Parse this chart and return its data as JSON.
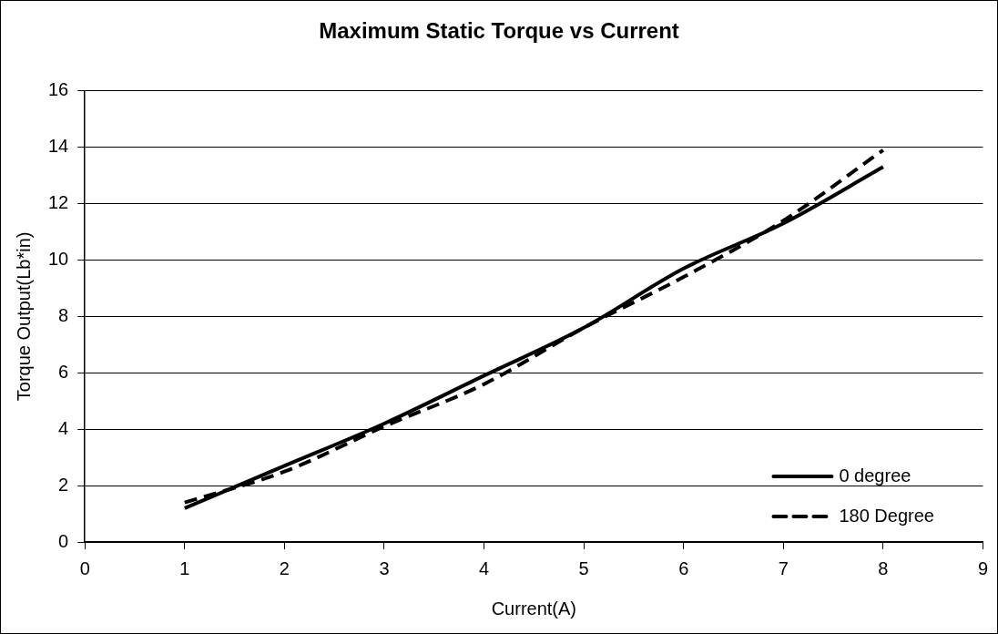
{
  "chart_data": {
    "type": "line",
    "title": "Maximum Static Torque vs Current",
    "xlabel": "Current(A)",
    "ylabel": "Torque Output(Lb*in)",
    "x": [
      1,
      2,
      3,
      4,
      5,
      6,
      7,
      8
    ],
    "series": [
      {
        "name": "0 degree",
        "color": "#000000",
        "line_style": "solid",
        "values": [
          1.2,
          2.7,
          4.2,
          5.9,
          7.6,
          9.7,
          11.3,
          13.3
        ]
      },
      {
        "name": "180 Degree",
        "color": "#000000",
        "line_style": "dashed",
        "values": [
          1.4,
          2.5,
          4.1,
          5.6,
          7.6,
          9.4,
          11.4,
          13.9
        ]
      }
    ],
    "xlim": [
      0,
      9
    ],
    "xticks": [
      0,
      1,
      2,
      3,
      4,
      5,
      6,
      7,
      8,
      9
    ],
    "ylim": [
      0,
      16
    ],
    "yticks": [
      0,
      2,
      4,
      6,
      8,
      10,
      12,
      14,
      16
    ],
    "grid": "y",
    "legend": "bottom right",
    "marker": "none"
  }
}
